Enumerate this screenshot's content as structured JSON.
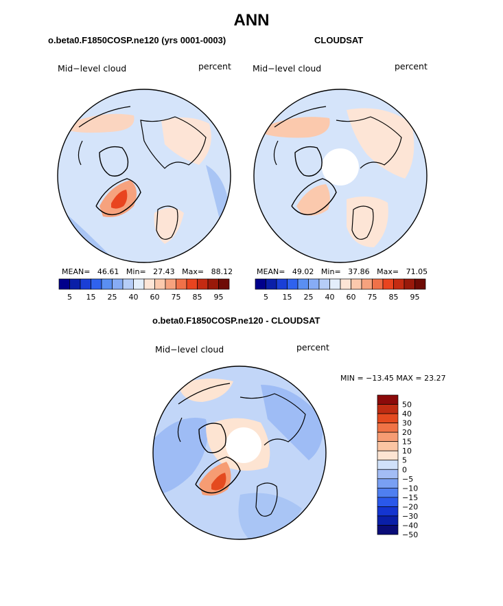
{
  "figure": {
    "title": "ANN",
    "panels": [
      {
        "id": "model",
        "header": "o.beta0.F1850COSP.ne120 (yrs 0001-0003)",
        "left_label": "Mid−level cloud",
        "right_label": "percent",
        "stats": {
          "mean_label": "MEAN=",
          "mean": "46.61",
          "min_label": "Min=",
          "min": "27.43",
          "max_label": "Max=",
          "max": "88.12"
        },
        "colorbar_ticks": [
          "5",
          "15",
          "25",
          "40",
          "60",
          "75",
          "85",
          "95"
        ]
      },
      {
        "id": "obs",
        "header": "CLOUDSAT",
        "left_label": "Mid−level cloud",
        "right_label": "percent",
        "stats": {
          "mean_label": "MEAN=",
          "mean": "49.02",
          "min_label": "Min=",
          "min": "37.86",
          "max_label": "Max=",
          "max": "71.05"
        },
        "colorbar_ticks": [
          "5",
          "15",
          "25",
          "40",
          "60",
          "75",
          "85",
          "95"
        ]
      },
      {
        "id": "diff",
        "header": "o.beta0.F1850COSP.ne120 - CLOUDSAT",
        "left_label": "Mid−level cloud",
        "right_label": "percent",
        "minmax": "MIN = −13.45 MAX =  23.27",
        "colorbar_ticks": [
          "50",
          "40",
          "30",
          "20",
          "15",
          "10",
          "5",
          "0",
          "−5",
          "−10",
          "−15",
          "−20",
          "−30",
          "−40",
          "−50"
        ]
      }
    ]
  },
  "chart_data": {
    "type": "heatmap",
    "projection": "polar stereographic (Northern Hemisphere)",
    "title": "ANN",
    "variable": "Mid-level cloud",
    "units": "percent",
    "panels": [
      {
        "name": "o.beta0.F1850COSP.ne120 (yrs 0001-0003)",
        "mean": 46.61,
        "min": 27.43,
        "max": 88.12,
        "levels": [
          5,
          10,
          15,
          20,
          25,
          30,
          40,
          50,
          60,
          70,
          75,
          80,
          85,
          90,
          95
        ]
      },
      {
        "name": "CLOUDSAT",
        "mean": 49.02,
        "min": 37.86,
        "max": 71.05,
        "levels": [
          5,
          10,
          15,
          20,
          25,
          30,
          40,
          50,
          60,
          70,
          75,
          80,
          85,
          90,
          95
        ]
      },
      {
        "name": "o.beta0.F1850COSP.ne120 - CLOUDSAT",
        "min": -13.45,
        "max": 23.27,
        "levels": [
          -50,
          -40,
          -30,
          -20,
          -15,
          -10,
          -5,
          0,
          5,
          10,
          15,
          20,
          30,
          40,
          50
        ]
      }
    ],
    "abs_colors": [
      "#00008b",
      "#0a1fa8",
      "#1a3fd6",
      "#2f62ee",
      "#5a8ff2",
      "#87acf5",
      "#b6cdf7",
      "#e3eefb",
      "#fde5d6",
      "#fbc9ad",
      "#f6a27e",
      "#f07149",
      "#e9441f",
      "#c42b12",
      "#99190a",
      "#6e0b05"
    ],
    "diff_colors": [
      "#0a0c78",
      "#0a1fa8",
      "#1435d0",
      "#2a58ea",
      "#4f7ff0",
      "#79a0f3",
      "#a3bdf5",
      "#d0e1fa",
      "#fde4d2",
      "#fbc5a3",
      "#f69c73",
      "#f07346",
      "#e44a1f",
      "#bf2c12",
      "#8b0a0a"
    ]
  }
}
